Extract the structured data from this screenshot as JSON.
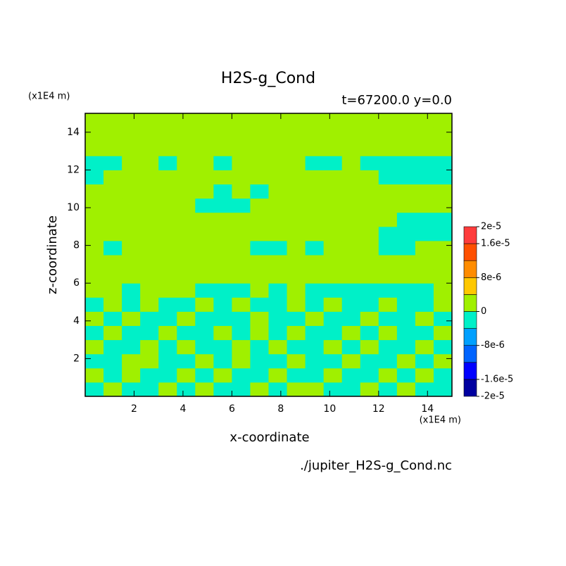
{
  "chart_data": {
    "type": "contour",
    "title": "H2S-g_Cond",
    "subtitle": "t=67200.0 y=0.0",
    "x_label": "x-coordinate",
    "y_label": "z-coordinate",
    "x_unit": "(x1E4 m)",
    "y_unit": "(x1E4 m)",
    "source": "./jupiter_H2S-g_Cond.nc",
    "xlim": [
      0,
      15
    ],
    "ylim": [
      0,
      15
    ],
    "xticks": [
      2,
      4,
      6,
      8,
      10,
      12,
      14
    ],
    "yticks": [
      2,
      4,
      6,
      8,
      10,
      12,
      14
    ],
    "x": [
      0.375,
      1.125,
      1.875,
      2.625,
      3.375,
      4.125,
      4.875,
      5.625,
      6.375,
      7.125,
      7.875,
      8.625,
      9.375,
      10.125,
      10.875,
      11.625,
      12.375,
      13.125,
      13.875,
      14.625
    ],
    "y": [
      0.375,
      1.125,
      1.875,
      2.625,
      3.375,
      4.125,
      4.875,
      5.625,
      6.375,
      7.125,
      7.875,
      8.625,
      9.375,
      10.125,
      10.875,
      11.625,
      12.375,
      13.125,
      13.875,
      14.625
    ],
    "z": [
      [
        -2e-06,
        0,
        -2e-06,
        -2e-06,
        0,
        -2e-06,
        0,
        -2e-06,
        -2e-06,
        0,
        -2e-06,
        0,
        0,
        -2e-06,
        -2e-06,
        0,
        -2e-06,
        0,
        -2e-06,
        -2e-06
      ],
      [
        0,
        -2e-06,
        0,
        -2e-06,
        -2e-06,
        0,
        -2e-06,
        0,
        -2e-06,
        -2e-06,
        0,
        -2e-06,
        -2e-06,
        0,
        -2e-06,
        -2e-06,
        0,
        -2e-06,
        0,
        -2e-06
      ],
      [
        -2e-06,
        -2e-06,
        0,
        0,
        -2e-06,
        -2e-06,
        0,
        -2e-06,
        0,
        -2e-06,
        -2e-06,
        0,
        -2e-06,
        -2e-06,
        0,
        -2e-06,
        -2e-06,
        0,
        -2e-06,
        0
      ],
      [
        0,
        -2e-06,
        -2e-06,
        0,
        -2e-06,
        0,
        -2e-06,
        -2e-06,
        0,
        -2e-06,
        0,
        -2e-06,
        -2e-06,
        0,
        -2e-06,
        0,
        -2e-06,
        -2e-06,
        0,
        -2e-06
      ],
      [
        -2e-06,
        0,
        -2e-06,
        -2e-06,
        0,
        -2e-06,
        -2e-06,
        0,
        -2e-06,
        0,
        -2e-06,
        0,
        -2e-06,
        -2e-06,
        0,
        -2e-06,
        0,
        -2e-06,
        -2e-06,
        0
      ],
      [
        0,
        -2e-06,
        0,
        -2e-06,
        -2e-06,
        0,
        -2e-06,
        -2e-06,
        -2e-06,
        0,
        -2e-06,
        -2e-06,
        0,
        -2e-06,
        -2e-06,
        0,
        -2e-06,
        -2e-06,
        0,
        -2e-06
      ],
      [
        -2e-06,
        0,
        -2e-06,
        0,
        -2e-06,
        -2e-06,
        0,
        -2e-06,
        0,
        -2e-06,
        -2e-06,
        0,
        -2e-06,
        0,
        -2e-06,
        -2e-06,
        0,
        -2e-06,
        -2e-06,
        0
      ],
      [
        0,
        0,
        -2e-06,
        0,
        0,
        0,
        -2e-06,
        -2e-06,
        -2e-06,
        0,
        -2e-06,
        0,
        -2e-06,
        -2e-06,
        -2e-06,
        -2e-06,
        -2e-06,
        -2e-06,
        -2e-06,
        0
      ],
      [
        0,
        0,
        0,
        0,
        0,
        0,
        0,
        0,
        0,
        0,
        0,
        0,
        0,
        0,
        0,
        0,
        0,
        0,
        0,
        0
      ],
      [
        0,
        0,
        0,
        0,
        0,
        0,
        0,
        0,
        0,
        0,
        0,
        0,
        0,
        0,
        0,
        0,
        0,
        0,
        0,
        0
      ],
      [
        0,
        -2e-06,
        0,
        0,
        0,
        0,
        0,
        0,
        0,
        -2e-06,
        -2e-06,
        0,
        -2e-06,
        0,
        0,
        0,
        -2e-06,
        -2e-06,
        0,
        0
      ],
      [
        0,
        0,
        0,
        0,
        0,
        0,
        0,
        0,
        0,
        0,
        0,
        0,
        0,
        0,
        0,
        0,
        -2e-06,
        -2e-06,
        -2e-06,
        -2e-06
      ],
      [
        0,
        0,
        0,
        0,
        0,
        0,
        0,
        0,
        0,
        0,
        0,
        0,
        0,
        0,
        0,
        0,
        0,
        -2e-06,
        -2e-06,
        -2e-06
      ],
      [
        0,
        0,
        0,
        0,
        0,
        0,
        -2e-06,
        -2e-06,
        -2e-06,
        0,
        0,
        0,
        0,
        0,
        0,
        0,
        0,
        0,
        0,
        0
      ],
      [
        0,
        0,
        0,
        0,
        0,
        0,
        0,
        -2e-06,
        0,
        -2e-06,
        0,
        0,
        0,
        0,
        0,
        0,
        0,
        0,
        0,
        0
      ],
      [
        -2e-06,
        0,
        0,
        0,
        0,
        0,
        0,
        0,
        0,
        0,
        0,
        0,
        0,
        0,
        0,
        0,
        -2e-06,
        -2e-06,
        -2e-06,
        -2e-06
      ],
      [
        -2e-06,
        -2e-06,
        0,
        0,
        -2e-06,
        0,
        0,
        -2e-06,
        0,
        0,
        0,
        0,
        -2e-06,
        -2e-06,
        0,
        -2e-06,
        -2e-06,
        -2e-06,
        -2e-06,
        -2e-06
      ],
      [
        0,
        0,
        0,
        0,
        0,
        0,
        0,
        0,
        0,
        0,
        0,
        0,
        0,
        0,
        0,
        0,
        0,
        0,
        0,
        0
      ],
      [
        0,
        0,
        0,
        0,
        0,
        0,
        0,
        0,
        0,
        0,
        0,
        0,
        0,
        0,
        0,
        0,
        0,
        0,
        0,
        0
      ],
      [
        0,
        0,
        0,
        0,
        0,
        0,
        0,
        0,
        0,
        0,
        0,
        0,
        0,
        0,
        0,
        0,
        0,
        0,
        0,
        0
      ]
    ],
    "colorbar": {
      "levels": [
        -2e-05,
        -1.6e-05,
        -1.2e-05,
        -8e-06,
        -4e-06,
        0,
        4e-06,
        8e-06,
        1.2e-05,
        1.6e-05,
        2e-05
      ],
      "colors": [
        "#0000a0",
        "#0000ff",
        "#0064ff",
        "#00a0ff",
        "#00f0c8",
        "#a0f000",
        "#ffc800",
        "#ff8c00",
        "#ff5000",
        "#ff3c3c"
      ],
      "ticks": [
        {
          "value": 2e-05,
          "label": "2e-5"
        },
        {
          "value": 1.6e-05,
          "label": "1.6e-5"
        },
        {
          "value": 8e-06,
          "label": "8e-6"
        },
        0,
        {
          "value": -8e-06,
          "label": "-8e-6"
        },
        {
          "value": -1.6e-05,
          "label": "-1.6e-5"
        },
        {
          "value": -2e-05,
          "label": "-2e-5"
        }
      ]
    }
  }
}
